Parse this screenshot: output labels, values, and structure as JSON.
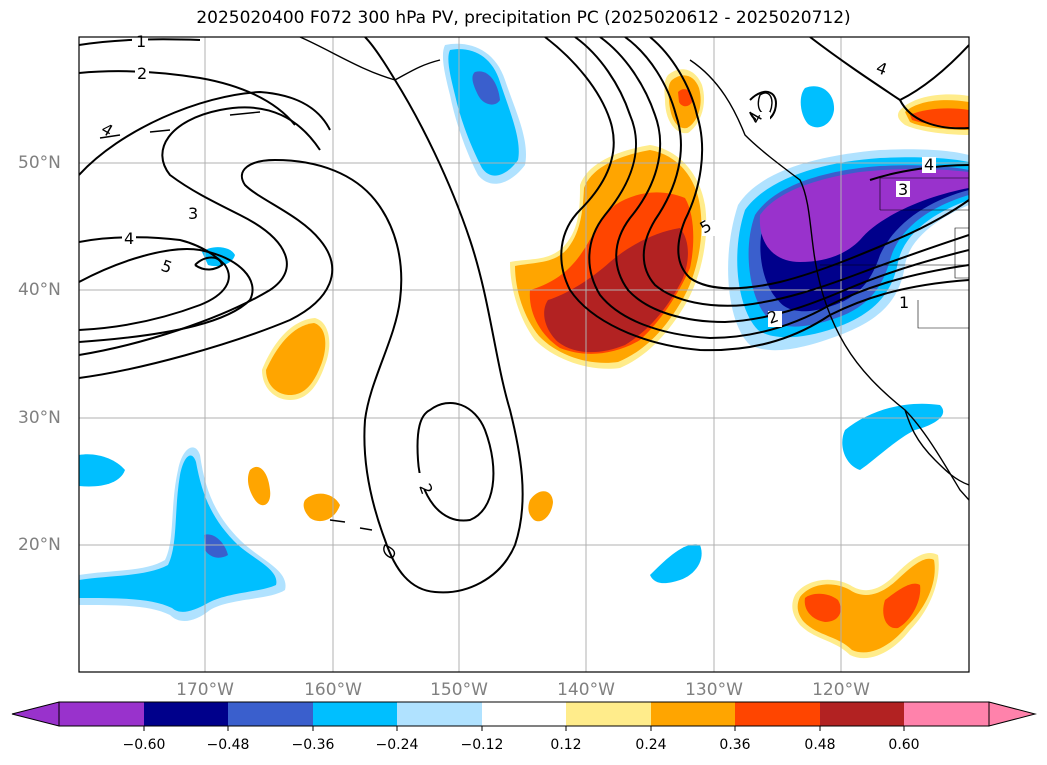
{
  "title": "2025020400 F072 300 hPa PV, precipitation PC (2025020612 - 2025020712)",
  "map": {
    "lon_range": [
      -180,
      -110
    ],
    "lat_range": [
      10,
      60
    ],
    "lat_labels": [
      "20°N",
      "30°N",
      "40°N",
      "50°N"
    ],
    "lon_labels": [
      "170°W",
      "160°W",
      "150°W",
      "140°W",
      "130°W",
      "120°W"
    ],
    "grid": true
  },
  "contour_labels": [
    "1",
    "2",
    "4",
    "3",
    "4",
    "5",
    "2",
    "4",
    "4",
    "5",
    "3",
    "4",
    "1",
    "2"
  ],
  "colorbar": {
    "ticks": [
      "−0.60",
      "−0.48",
      "−0.36",
      "−0.24",
      "−0.12",
      "0.12",
      "0.24",
      "0.36",
      "0.48",
      "0.60"
    ],
    "colors": [
      "#9932CC",
      "#00008B",
      "#3A5FCD",
      "#00BFFF",
      "#B0E2FF",
      "#FFFFFF",
      "#FFEC8B",
      "#FFA500",
      "#FF4500",
      "#B22222",
      "#FF82AB"
    ]
  }
}
